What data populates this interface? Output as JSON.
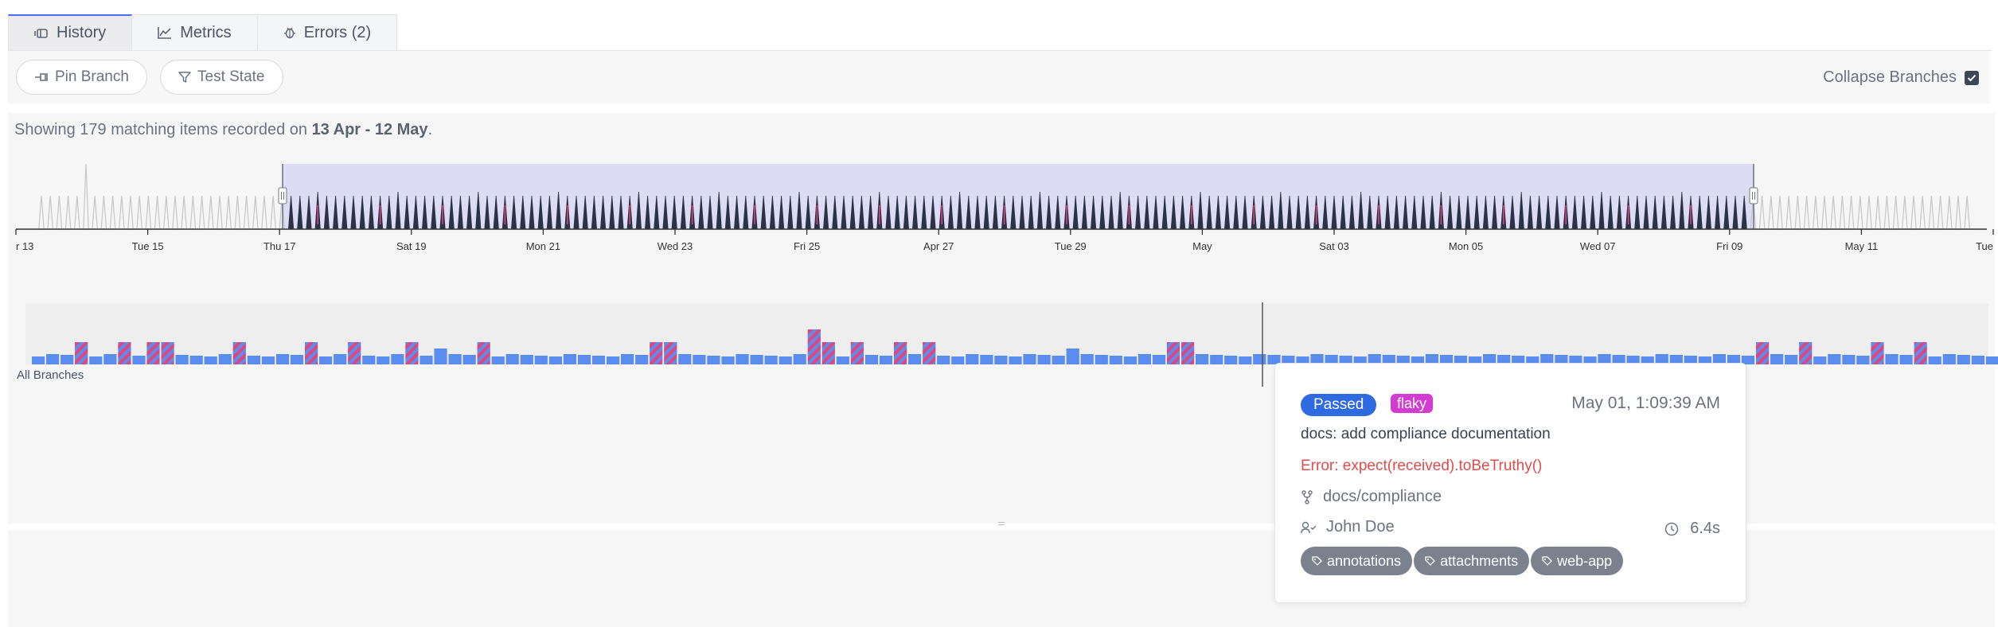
{
  "tabs": [
    {
      "label": "History",
      "icon": "history-icon",
      "active": true
    },
    {
      "label": "Metrics",
      "icon": "chart-line-icon",
      "active": false
    },
    {
      "label": "Errors (2)",
      "icon": "bug-icon",
      "active": false
    }
  ],
  "filters": {
    "pin_branch": "Pin Branch",
    "test_state": "Test State",
    "collapse_branches": "Collapse Branches",
    "collapse_checked": true
  },
  "summary": {
    "prefix": "Showing 179 matching items recorded on",
    "range": "13 Apr - 12 May",
    "suffix": "."
  },
  "timeline": {
    "tick_labels": [
      "r 13",
      "Tue 15",
      "Thu 17",
      "Sat 19",
      "Mon 21",
      "Wed 23",
      "Fri 25",
      "Apr 27",
      "Tue 29",
      "May",
      "Sat 03",
      "Mon 05",
      "Wed 07",
      "Fri 09",
      "May 11",
      "Tue"
    ],
    "selection": {
      "start": "Thu 17",
      "end": "Fri 09"
    }
  },
  "histogram": {
    "branch_label": "All Branches",
    "colors": {
      "passed": "#5b8def",
      "flaky": "#e1457a",
      "spike": "#c6c6c6",
      "selected": "#2c3246",
      "selection_fill": "#dcdcf5",
      "cursor": "#555555"
    }
  },
  "tooltip": {
    "status": "Passed",
    "flaky": "flaky",
    "time": "May 01, 1:09:39 AM",
    "message": "docs: add compliance documentation",
    "error": "Error: expect(received).toBeTruthy()",
    "branch": "docs/compliance",
    "author": "John Doe",
    "duration": "6.4s",
    "tags": [
      "annotations",
      "attachments",
      "web-app"
    ]
  }
}
